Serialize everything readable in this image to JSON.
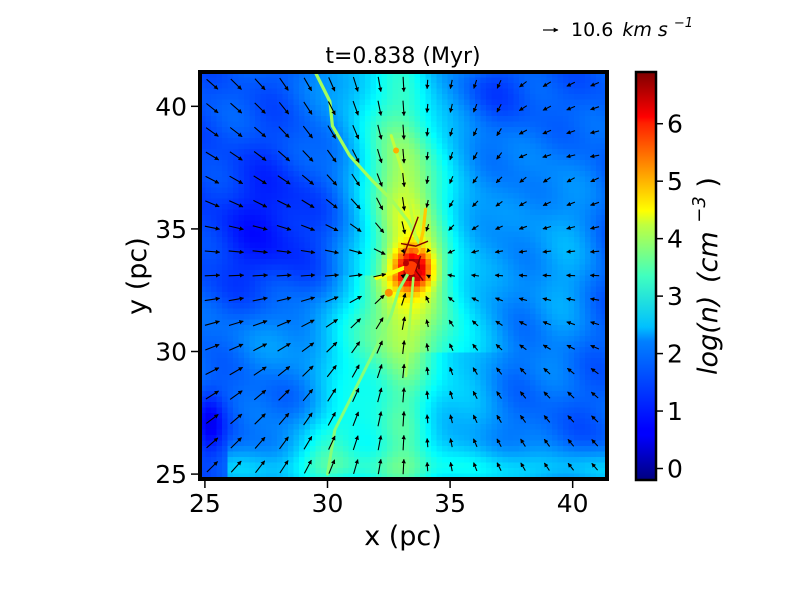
{
  "chart_data": {
    "type": "heatmap",
    "title": "t=0.838 (Myr)",
    "xlabel": "x (pc)",
    "ylabel": "y (pc)",
    "xlim": [
      24.8,
      41.4
    ],
    "ylim": [
      24.8,
      41.4
    ],
    "xticks": [
      25,
      30,
      35,
      40
    ],
    "yticks": [
      25,
      30,
      35,
      40
    ],
    "colorbar": {
      "label": "log(n) (cm⁻³)",
      "label_main": "log(n)",
      "label_unit": "(cm",
      "label_exp": "−3",
      "label_close": ")",
      "range": [
        -0.2,
        6.9
      ],
      "ticks": [
        0,
        1,
        2,
        3,
        4,
        5,
        6
      ],
      "colormap": "jet"
    },
    "quiver_key": {
      "value": 10.6,
      "label_value": "10.6",
      "label_unit_main": "km s",
      "label_unit_exp": "−1"
    },
    "field_description": {
      "center_pc": [
        33.5,
        33.4
      ],
      "max_log_density": 6.5,
      "background_log_density": 1.3
    },
    "grid": false
  }
}
